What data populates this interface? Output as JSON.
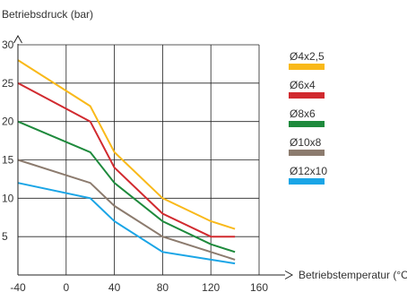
{
  "chart_data": {
    "type": "line",
    "xlabel": "Betriebstemperatur (°C)",
    "ylabel": "Betriebsdruck (bar)",
    "xlim": [
      -40,
      160
    ],
    "ylim": [
      0,
      30
    ],
    "x_ticks": [
      "-40",
      "0",
      "40",
      "80",
      "120",
      "160"
    ],
    "y_ticks": [
      "5",
      "10",
      "15",
      "20",
      "25",
      "30"
    ],
    "grid": true,
    "legend": "right",
    "series": [
      {
        "name": "Ø4x2,5",
        "color": "#f9b91a",
        "x": [
          -40,
          20,
          40,
          80,
          120,
          140
        ],
        "y": [
          28,
          22,
          16,
          10,
          7,
          6
        ]
      },
      {
        "name": "Ø6x4",
        "color": "#d12a2f",
        "x": [
          -40,
          20,
          40,
          80,
          120,
          140
        ],
        "y": [
          25,
          20,
          14,
          8,
          5,
          5
        ]
      },
      {
        "name": "Ø8x6",
        "color": "#1e8a3c",
        "x": [
          -40,
          20,
          40,
          80,
          120,
          140
        ],
        "y": [
          20,
          16,
          12,
          7,
          4,
          3
        ]
      },
      {
        "name": "Ø10x8",
        "color": "#8c7b6e",
        "x": [
          -40,
          20,
          40,
          80,
          120,
          140
        ],
        "y": [
          15,
          12,
          9,
          5,
          3,
          2
        ]
      },
      {
        "name": "Ø12x10",
        "color": "#1aa5e6",
        "x": [
          -40,
          20,
          40,
          80,
          120,
          140
        ],
        "y": [
          12,
          10,
          7,
          3,
          2,
          1.5
        ]
      }
    ]
  }
}
